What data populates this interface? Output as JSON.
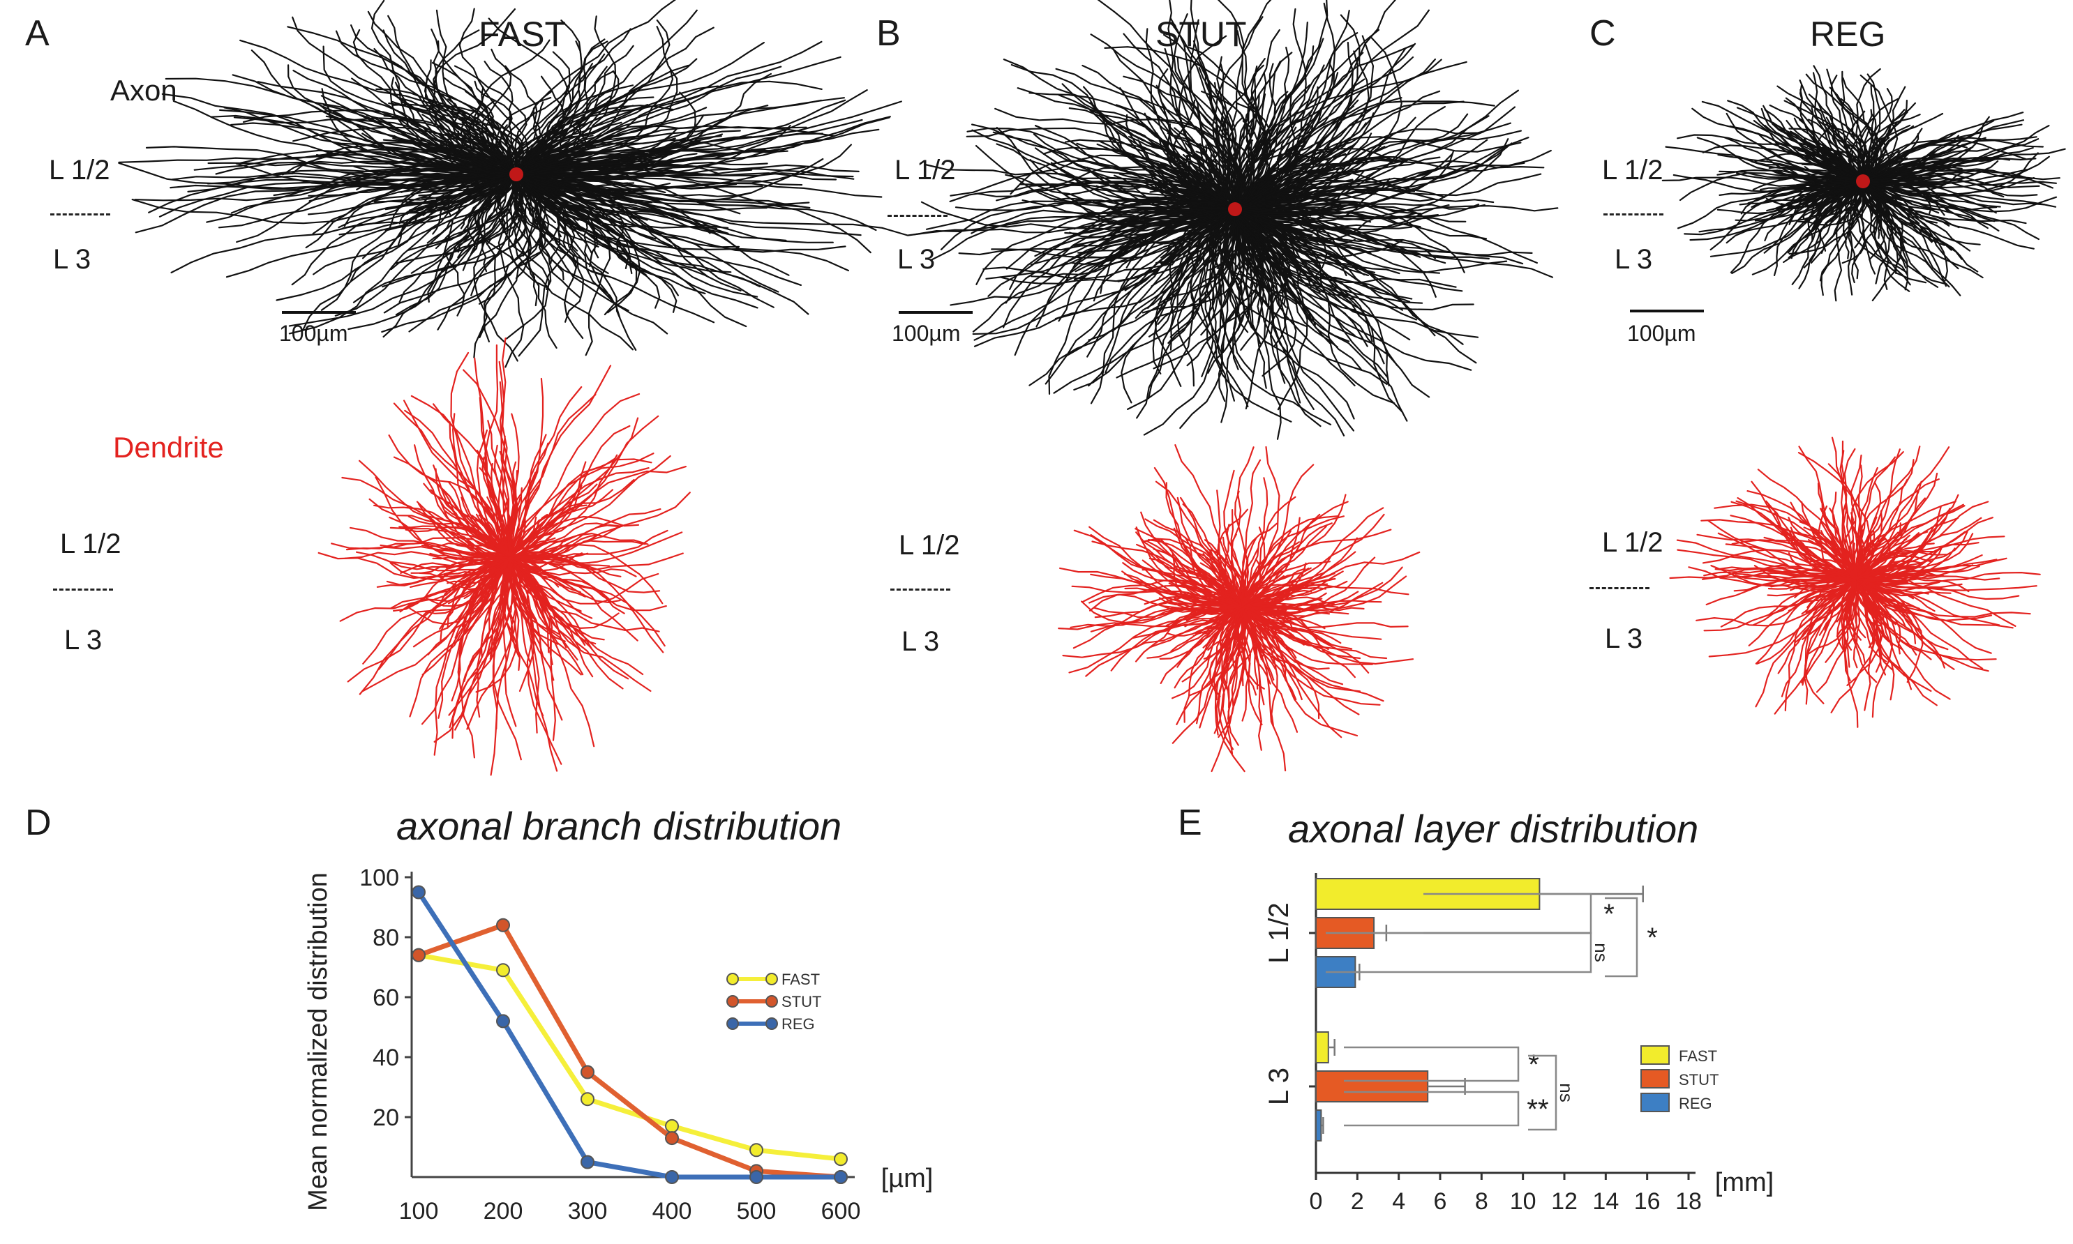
{
  "panels": {
    "A": {
      "letter": "A",
      "title": "FAST",
      "axon_label": "Axon",
      "dendrite_label": "Dendrite",
      "layer_top": "L 1/2",
      "layer_bottom": "L 3",
      "scale": "100µm"
    },
    "B": {
      "letter": "B",
      "title": "STUT",
      "layer_top": "L 1/2",
      "layer_bottom": "L 3",
      "scale": "100µm"
    },
    "C": {
      "letter": "C",
      "title": "REG",
      "layer_top": "L 1/2",
      "layer_bottom": "L 3",
      "scale": "100µm"
    },
    "D": {
      "letter": "D",
      "title": "axonal branch distribution"
    },
    "E": {
      "letter": "E",
      "title": "axonal layer distribution"
    }
  },
  "colors": {
    "axon": "#111111",
    "dendrite": "#e3221f",
    "fast": "#f2ec2c",
    "stut": "#e55a24",
    "reg": "#3d7fc4"
  },
  "chart_data": [
    {
      "type": "line",
      "title": "axonal branch distribution",
      "xlabel": "[µm]",
      "ylabel": "Mean normalized distribution",
      "x": [
        100,
        200,
        300,
        400,
        500,
        600
      ],
      "xlim": [
        100,
        600
      ],
      "ylim": [
        0,
        100
      ],
      "yticks": [
        20,
        40,
        60,
        80,
        100
      ],
      "series": [
        {
          "name": "FAST",
          "values": [
            74,
            69,
            26,
            17,
            9,
            6
          ]
        },
        {
          "name": "STUT",
          "values": [
            74,
            84,
            35,
            13,
            2,
            0
          ]
        },
        {
          "name": "REG",
          "values": [
            95,
            52,
            5,
            0,
            0,
            0
          ]
        }
      ],
      "legend_position": "right"
    },
    {
      "type": "bar",
      "orientation": "horizontal",
      "title": "axonal layer distribution",
      "xlabel": "[mm]",
      "xlim": [
        0,
        18
      ],
      "xticks": [
        0,
        2,
        4,
        6,
        8,
        10,
        12,
        14,
        16,
        18
      ],
      "groups": [
        "L 1/2",
        "L 3"
      ],
      "series": [
        {
          "name": "FAST",
          "values": [
            10.8,
            0.6
          ],
          "errors": [
            5.0,
            0.3
          ]
        },
        {
          "name": "STUT",
          "values": [
            2.8,
            5.4
          ],
          "errors": [
            0.6,
            1.8
          ]
        },
        {
          "name": "REG",
          "values": [
            1.9,
            0.25
          ],
          "errors": [
            0.2,
            0.1
          ]
        }
      ],
      "significance": [
        "*",
        "*",
        "ns",
        "*",
        "**",
        "ns"
      ],
      "legend_position": "right"
    }
  ]
}
